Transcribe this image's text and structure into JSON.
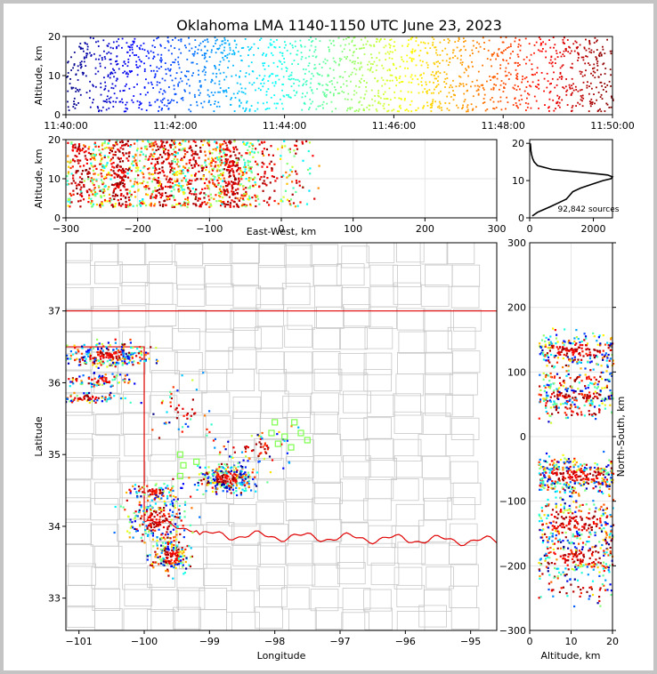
{
  "title": "Oklahoma LMA 1140-1150 UTC June 23, 2023",
  "chart_data": [
    {
      "panel": "time-altitude",
      "type": "scatter",
      "ylabel": "Altitude, km",
      "ylim": [
        0,
        20
      ],
      "y_ticks": [
        "0",
        "10",
        "20"
      ],
      "x_ticks": [
        "11:40:00",
        "11:42:00",
        "11:44:00",
        "11:46:00",
        "11:48:00",
        "11:50:00"
      ],
      "xlim_minutes": [
        0,
        10
      ],
      "colormap": "jet (by time)"
    },
    {
      "panel": "east-west-altitude",
      "type": "scatter",
      "xlabel": "East-West, km",
      "ylabel": "Altitude, km",
      "xlim": [
        -300,
        300
      ],
      "ylim": [
        0,
        20
      ],
      "x_ticks": [
        "−300",
        "−200",
        "−100",
        "0",
        "100",
        "200",
        "300"
      ],
      "y_ticks": [
        "0",
        "10",
        "20"
      ]
    },
    {
      "panel": "altitude-histogram",
      "type": "line",
      "annotation": "92,842 sources",
      "xlim": [
        0,
        2600
      ],
      "ylim": [
        0,
        21
      ],
      "x_ticks": [
        "0",
        "2000"
      ],
      "y_ticks": [
        "0",
        "10",
        "20"
      ],
      "profile_altitude_km": [
        0.5,
        1.5,
        2,
        3,
        4,
        5,
        6,
        7,
        8,
        9,
        10,
        10.5,
        11,
        11.5,
        12,
        13,
        14,
        15,
        16,
        17,
        18,
        19,
        20
      ],
      "profile_counts": [
        80,
        250,
        380,
        650,
        900,
        1150,
        1250,
        1350,
        1600,
        1950,
        2300,
        2550,
        2600,
        2450,
        1900,
        700,
        250,
        140,
        90,
        60,
        40,
        30,
        20
      ]
    },
    {
      "panel": "plan-view",
      "type": "scatter",
      "xlabel": "Longitude",
      "ylabel": "Latitude",
      "xlim": [
        -101.2,
        -94.6
      ],
      "ylim": [
        32.55,
        37.95
      ],
      "x_ticks": [
        "−101",
        "−100",
        "−99",
        "−98",
        "−97",
        "−96",
        "−95"
      ],
      "y_ticks": [
        "33",
        "34",
        "35",
        "36",
        "37"
      ],
      "station_color": "#7cff4a",
      "border_color": "#e00000"
    },
    {
      "panel": "north-south-altitude",
      "type": "scatter",
      "xlabel": "Altitude, km",
      "ylabel": "North-South, km",
      "xlim": [
        0,
        20
      ],
      "ylim": [
        -300,
        300
      ],
      "x_ticks": [
        "0",
        "10",
        "20"
      ],
      "y_ticks": [
        "−300",
        "−200",
        "−100",
        "0",
        "100",
        "200",
        "300"
      ]
    }
  ]
}
